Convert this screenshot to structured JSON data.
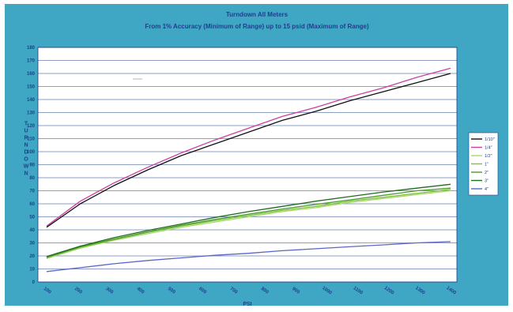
{
  "chart_data": {
    "type": "line",
    "title": "Turndown All Meters",
    "subtitle": "From 1% Accuracy (Minimum of Range) up to 15 psid (Maximum of Range)",
    "xlabel": "PSI",
    "ylabel": "TURNDOWN",
    "ylim": [
      0,
      180
    ],
    "y_ticks": [
      0,
      10,
      20,
      30,
      40,
      50,
      60,
      70,
      80,
      90,
      100,
      110,
      120,
      130,
      140,
      150,
      160,
      170,
      180
    ],
    "x_ticks": [
      "100",
      "200",
      "300",
      "400",
      "500",
      "600",
      "700",
      "800",
      "900",
      "1000",
      "1100",
      "1200",
      "1300",
      "1400"
    ],
    "grid": true,
    "legend_position": "right",
    "series": [
      {
        "name": "1/10\"",
        "color": "#111111",
        "values": [
          42,
          60,
          74,
          86,
          97,
          106,
          115,
          124,
          131,
          139,
          146,
          153,
          160
        ]
      },
      {
        "name": "1/4\"",
        "color": "#cc3fa0",
        "values": [
          43,
          62,
          76,
          88,
          99,
          109,
          118,
          127,
          134,
          142,
          149,
          157,
          164
        ]
      },
      {
        "name": "1/2\"",
        "color": "#a8d86a",
        "values": [
          18,
          26,
          32,
          37,
          42,
          46,
          50,
          54,
          57,
          61,
          64,
          67,
          70
        ]
      },
      {
        "name": "1\"",
        "color": "#7cc242",
        "values": [
          18.5,
          26.5,
          32.5,
          38,
          43,
          47,
          51,
          55,
          58,
          62,
          65,
          68,
          71
        ]
      },
      {
        "name": "2\"",
        "color": "#4f9a2a",
        "values": [
          19,
          27,
          33,
          38.5,
          43.5,
          48,
          52,
          56,
          59.5,
          63,
          66.5,
          70,
          72
        ]
      },
      {
        "name": "3\"",
        "color": "#1f6b1f",
        "values": [
          19.5,
          27.5,
          34,
          39.5,
          44.5,
          49.5,
          54,
          58,
          62,
          65.5,
          69,
          72,
          75
        ]
      },
      {
        "name": "4\"",
        "color": "#5a66c8",
        "values": [
          8,
          11,
          14,
          16.5,
          18.5,
          20.5,
          22,
          24,
          25.5,
          27,
          28.5,
          30,
          31
        ]
      }
    ]
  }
}
